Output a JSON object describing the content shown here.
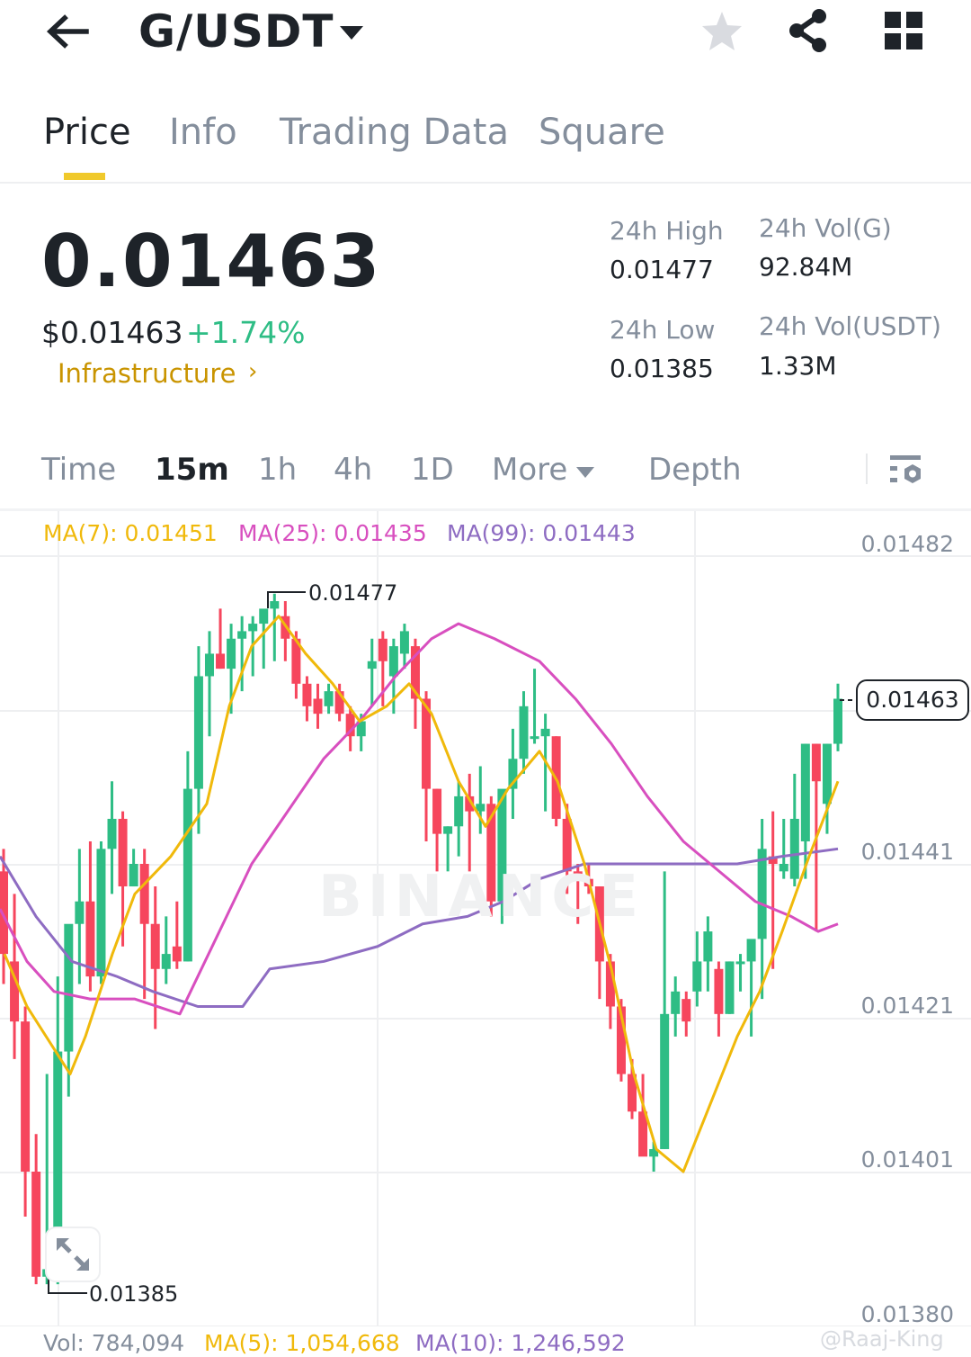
{
  "header": {
    "pair": "G/USDT",
    "icons": [
      "back-arrow-icon",
      "caret-down-icon",
      "star-icon",
      "share-icon",
      "grid-icon"
    ]
  },
  "tabs": [
    {
      "label": "Price",
      "active": true
    },
    {
      "label": "Info",
      "active": false
    },
    {
      "label": "Trading Data",
      "active": false
    },
    {
      "label": "Square",
      "active": false
    }
  ],
  "ticker": {
    "last_price": "0.01463",
    "usd_price": "$0.01463",
    "change_pct": "+1.74%",
    "sector": "Infrastructure",
    "sector_chevron": "›",
    "high_label": "24h High",
    "high_value": "0.01477",
    "low_label": "24h Low",
    "low_value": "0.01385",
    "vol_base_label": "24h Vol(G)",
    "vol_base_value": "92.84M",
    "vol_quote_label": "24h Vol(USDT)",
    "vol_quote_value": "1.33M"
  },
  "intervals": {
    "items": [
      {
        "label": "Time",
        "active": false
      },
      {
        "label": "15m",
        "active": true
      },
      {
        "label": "1h",
        "active": false
      },
      {
        "label": "4h",
        "active": false
      },
      {
        "label": "1D",
        "active": false
      },
      {
        "label": "More",
        "active": false
      },
      {
        "label": "Depth",
        "active": false
      }
    ]
  },
  "ma_legend": {
    "ma7": "MA(7): 0.01451",
    "ma25": "MA(25): 0.01435",
    "ma99": "MA(99): 0.01443"
  },
  "colors": {
    "up": "#2ebd85",
    "down": "#f6465d",
    "ma7": "#f0b90b",
    "ma25": "#d84fbf",
    "ma99": "#8e6cc2",
    "accent": "#f0c92b",
    "grid": "#eeeff1"
  },
  "chart": {
    "current_price_tag": "0.01463",
    "high_marker": "0.01477",
    "low_marker": "0.01385",
    "watermark": "BINANCE",
    "y_axis": [
      "0.01482",
      "0.01441",
      "0.01421",
      "0.01401",
      "0.01380"
    ],
    "expand_icon": "expand-icon"
  },
  "chart_data": {
    "type": "candlestick",
    "title": "G/USDT 15m",
    "interval": "15m",
    "ylim": [
      0.0138,
      0.01482
    ],
    "y_ticks": [
      0.01482,
      0.01462,
      0.01441,
      0.01421,
      0.01401,
      0.0138
    ],
    "candles": [
      [
        0.0144,
        0.01443,
        0.01425,
        0.01429
      ],
      [
        0.01428,
        0.01437,
        0.01415,
        0.0142
      ],
      [
        0.0142,
        0.01422,
        0.01394,
        0.014
      ],
      [
        0.014,
        0.01405,
        0.01385,
        0.01386
      ],
      [
        0.01386,
        0.01413,
        0.01385,
        0.01387
      ],
      [
        0.01388,
        0.01426,
        0.01385,
        0.01416
      ],
      [
        0.01416,
        0.01429,
        0.0141,
        0.01433
      ],
      [
        0.01433,
        0.01443,
        0.01425,
        0.01436
      ],
      [
        0.01436,
        0.01444,
        0.01424,
        0.01426
      ],
      [
        0.01426,
        0.01444,
        0.01425,
        0.01443
      ],
      [
        0.01443,
        0.01452,
        0.01437,
        0.01447
      ],
      [
        0.01447,
        0.01448,
        0.0143,
        0.01438
      ],
      [
        0.01438,
        0.01443,
        0.01438,
        0.01441
      ],
      [
        0.01441,
        0.01443,
        0.01423,
        0.01433
      ],
      [
        0.01433,
        0.01438,
        0.01419,
        0.01427
      ],
      [
        0.01427,
        0.01434,
        0.01425,
        0.01429
      ],
      [
        0.0143,
        0.01436,
        0.01427,
        0.01428
      ],
      [
        0.01428,
        0.01456,
        0.01428,
        0.01451
      ],
      [
        0.01451,
        0.0147,
        0.01445,
        0.01466
      ],
      [
        0.01466,
        0.01472,
        0.01458,
        0.01469
      ],
      [
        0.01469,
        0.01475,
        0.01467,
        0.01467
      ],
      [
        0.01467,
        0.01473,
        0.01461,
        0.01471
      ],
      [
        0.01471,
        0.01474,
        0.01464,
        0.01472
      ],
      [
        0.01472,
        0.01474,
        0.01466,
        0.01473
      ],
      [
        0.01473,
        0.01474,
        0.01467,
        0.01475
      ],
      [
        0.01475,
        0.01477,
        0.01468,
        0.01476
      ],
      [
        0.01474,
        0.01476,
        0.01468,
        0.01471
      ],
      [
        0.01471,
        0.01472,
        0.01463,
        0.01465
      ],
      [
        0.01465,
        0.01466,
        0.0146,
        0.01462
      ],
      [
        0.01463,
        0.01465,
        0.01459,
        0.01461
      ],
      [
        0.01462,
        0.01465,
        0.01461,
        0.01464
      ],
      [
        0.01464,
        0.01465,
        0.0146,
        0.01461
      ],
      [
        0.01461,
        0.01462,
        0.01456,
        0.01458
      ],
      [
        0.01458,
        0.01461,
        0.01456,
        0.0146
      ],
      [
        0.01467,
        0.01471,
        0.01462,
        0.01468
      ],
      [
        0.01471,
        0.01472,
        0.01462,
        0.01468
      ],
      [
        0.01466,
        0.01471,
        0.01461,
        0.0147
      ],
      [
        0.01469,
        0.01473,
        0.01467,
        0.01472
      ],
      [
        0.0147,
        0.01471,
        0.01459,
        0.01463
      ],
      [
        0.01463,
        0.01464,
        0.01444,
        0.01451
      ],
      [
        0.01451,
        0.01451,
        0.0144,
        0.01445
      ],
      [
        0.01445,
        0.01446,
        0.0144,
        0.01446
      ],
      [
        0.01446,
        0.01452,
        0.01442,
        0.0145
      ],
      [
        0.0145,
        0.01453,
        0.0144,
        0.01448
      ],
      [
        0.01448,
        0.01454,
        0.01445,
        0.01449
      ],
      [
        0.01449,
        0.0145,
        0.01434,
        0.01436
      ],
      [
        0.01436,
        0.0145,
        0.01433,
        0.01451
      ],
      [
        0.01451,
        0.01459,
        0.01447,
        0.01455
      ],
      [
        0.01455,
        0.01464,
        0.01453,
        0.01462
      ],
      [
        0.01458,
        0.01467,
        0.01457,
        0.01458
      ],
      [
        0.01458,
        0.01461,
        0.01448,
        0.01459
      ],
      [
        0.01458,
        0.01458,
        0.01446,
        0.01447
      ],
      [
        0.01447,
        0.01449,
        0.01437,
        0.0144
      ],
      [
        0.0144,
        0.01441,
        0.01433,
        0.01439
      ],
      [
        0.01439,
        0.01441,
        0.01437,
        0.01438
      ],
      [
        0.01438,
        0.01438,
        0.01423,
        0.01428
      ],
      [
        0.01428,
        0.01429,
        0.01419,
        0.01422
      ],
      [
        0.01422,
        0.01423,
        0.01412,
        0.01413
      ],
      [
        0.01413,
        0.01415,
        0.01407,
        0.01408
      ],
      [
        0.01408,
        0.01413,
        0.01404,
        0.01402
      ],
      [
        0.01402,
        0.01404,
        0.014,
        0.01403
      ],
      [
        0.01403,
        0.0144,
        0.01403,
        0.01421
      ],
      [
        0.01421,
        0.01426,
        0.01418,
        0.01424
      ],
      [
        0.01423,
        0.01424,
        0.01418,
        0.0142
      ],
      [
        0.01424,
        0.01432,
        0.01422,
        0.01428
      ],
      [
        0.01428,
        0.01434,
        0.01424,
        0.01432
      ],
      [
        0.01427,
        0.01428,
        0.01418,
        0.01421
      ],
      [
        0.01421,
        0.01428,
        0.01421,
        0.01428
      ],
      [
        0.01428,
        0.01429,
        0.01424,
        0.01428
      ],
      [
        0.01428,
        0.01429,
        0.01418,
        0.01431
      ],
      [
        0.01431,
        0.01447,
        0.01423,
        0.01443
      ],
      [
        0.01442,
        0.01448,
        0.01427,
        0.01441
      ],
      [
        0.0144,
        0.01447,
        0.01439,
        0.01441
      ],
      [
        0.01439,
        0.01453,
        0.01438,
        0.01447
      ],
      [
        0.01444,
        0.01457,
        0.01439,
        0.01457
      ],
      [
        0.01457,
        0.01457,
        0.01432,
        0.01452
      ],
      [
        0.01449,
        0.01457,
        0.01445,
        0.01457
      ],
      [
        0.01457,
        0.01465,
        0.01456,
        0.01463
      ]
    ],
    "ma7_line": [
      [
        5,
        1429
      ],
      [
        30,
        1422
      ],
      [
        62,
        1416
      ],
      [
        78,
        1413
      ],
      [
        95,
        1418
      ],
      [
        125,
        1429
      ],
      [
        150,
        1437
      ],
      [
        190,
        1442
      ],
      [
        230,
        1449
      ],
      [
        255,
        1462
      ],
      [
        280,
        1470
      ],
      [
        310,
        1474
      ],
      [
        340,
        1469
      ],
      [
        370,
        1465
      ],
      [
        400,
        1460
      ],
      [
        430,
        1462
      ],
      [
        455,
        1465
      ],
      [
        480,
        1461
      ],
      [
        510,
        1452
      ],
      [
        540,
        1446
      ],
      [
        565,
        1451
      ],
      [
        600,
        1456
      ],
      [
        620,
        1452
      ],
      [
        650,
        1441
      ],
      [
        680,
        1427
      ],
      [
        705,
        1413
      ],
      [
        730,
        1403
      ],
      [
        760,
        1400
      ],
      [
        790,
        1409
      ],
      [
        820,
        1418
      ],
      [
        845,
        1424
      ],
      [
        870,
        1432
      ],
      [
        900,
        1442
      ],
      [
        932,
        1452
      ]
    ],
    "ma25_line": [
      [
        0,
        1435
      ],
      [
        30,
        1428
      ],
      [
        60,
        1424
      ],
      [
        100,
        1423
      ],
      [
        150,
        1423
      ],
      [
        200,
        1421
      ],
      [
        240,
        1431
      ],
      [
        280,
        1441
      ],
      [
        320,
        1448
      ],
      [
        360,
        1455
      ],
      [
        400,
        1460
      ],
      [
        440,
        1466
      ],
      [
        480,
        1471
      ],
      [
        510,
        1473
      ],
      [
        550,
        1471
      ],
      [
        600,
        1468
      ],
      [
        640,
        1463
      ],
      [
        680,
        1457
      ],
      [
        720,
        1450
      ],
      [
        760,
        1444
      ],
      [
        790,
        1441
      ],
      [
        840,
        1436
      ],
      [
        880,
        1434
      ],
      [
        910,
        1432
      ],
      [
        932,
        1433
      ]
    ],
    "ma99_line": [
      [
        0,
        1442
      ],
      [
        40,
        1434
      ],
      [
        80,
        1428
      ],
      [
        130,
        1426
      ],
      [
        170,
        1424
      ],
      [
        220,
        1422
      ],
      [
        270,
        1422
      ],
      [
        300,
        1427
      ],
      [
        360,
        1428
      ],
      [
        420,
        1430
      ],
      [
        470,
        1433
      ],
      [
        520,
        1434
      ],
      [
        560,
        1436
      ],
      [
        600,
        1439
      ],
      [
        650,
        1441
      ],
      [
        700,
        1441
      ],
      [
        760,
        1441
      ],
      [
        820,
        1441
      ],
      [
        870,
        1442
      ],
      [
        932,
        1443
      ]
    ]
  },
  "volume_legend": {
    "vol": "Vol: 784,094",
    "ma5": "MA(5): 1,054,668",
    "ma10": "MA(10): 1,246,592"
  },
  "credit": "@Raaj-King"
}
